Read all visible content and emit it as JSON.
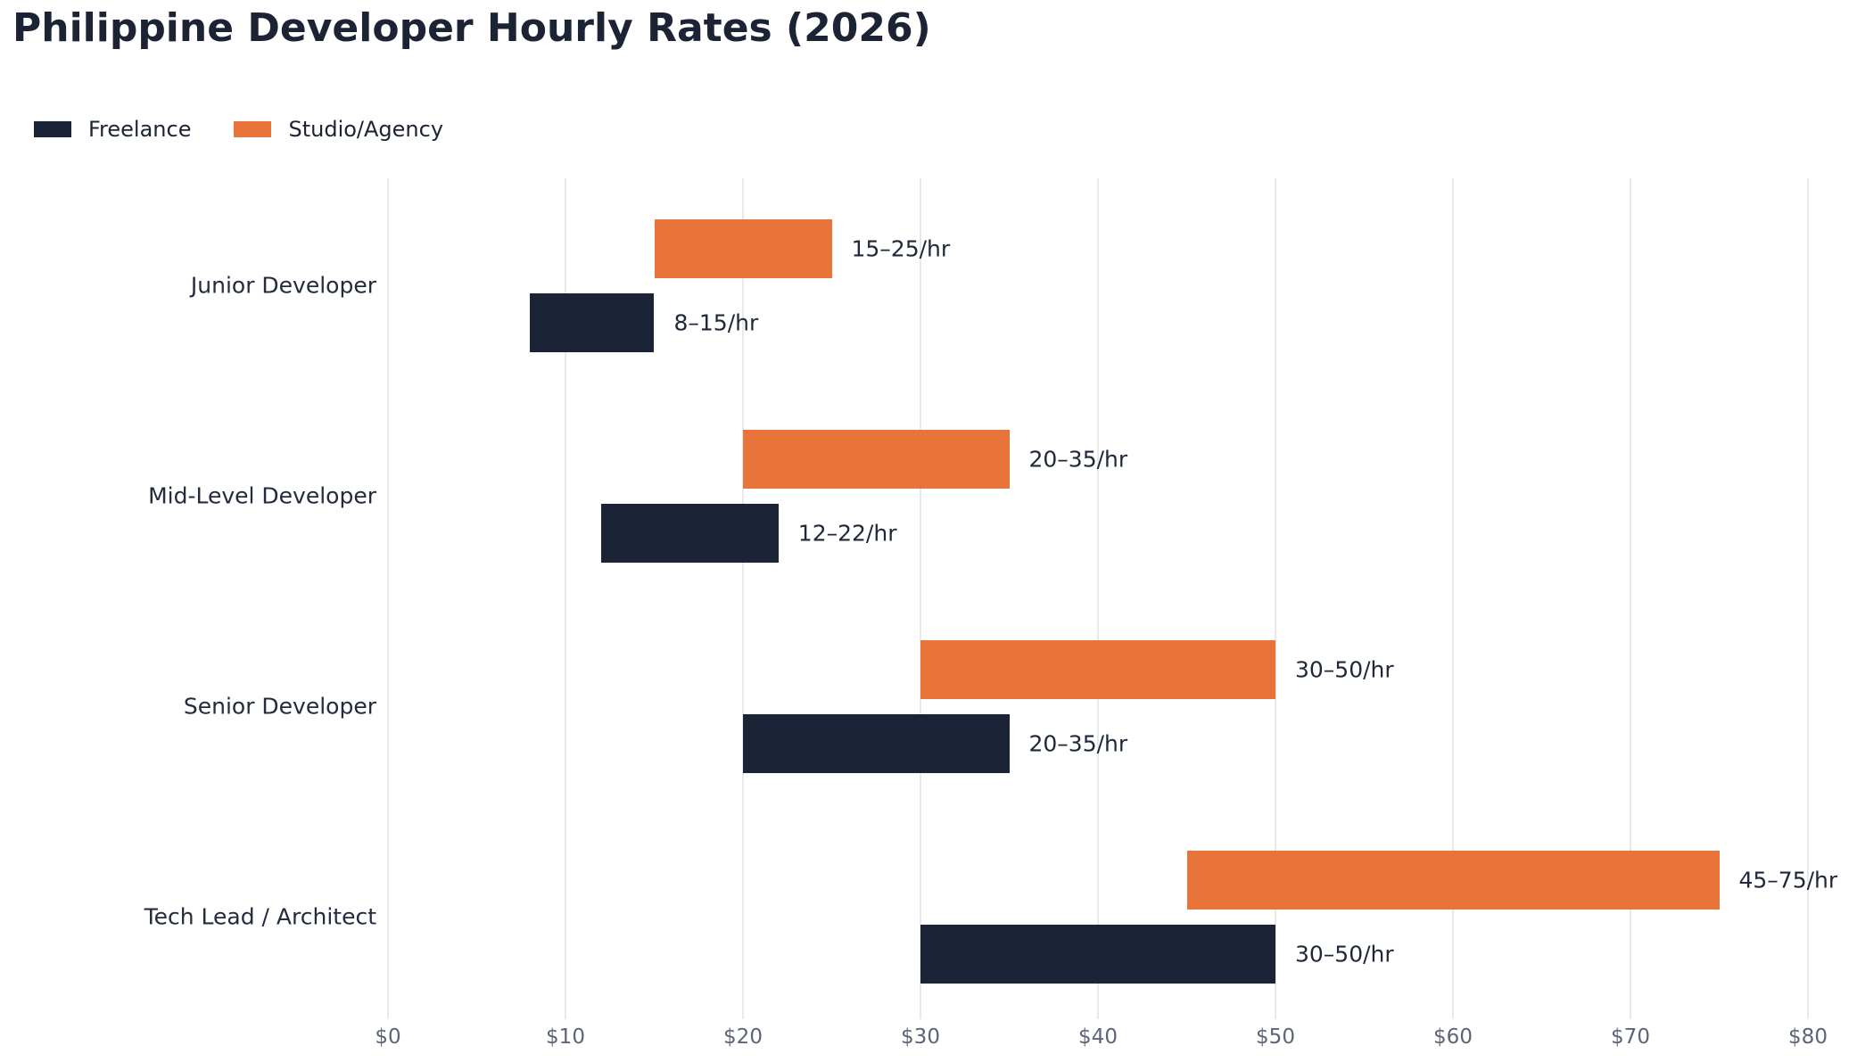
{
  "title": "Philippine Developer Hourly Rates (2026)",
  "colors": {
    "freelance": "#1b2336",
    "studio_agency": "#e8743a",
    "title_text": "#1b2335",
    "axis_tick_text": "#5d6478",
    "gridline": "#e9e9ec",
    "value_label_text": "#1f2839",
    "background": "#ffffff"
  },
  "legend": [
    {
      "label": "Freelance",
      "color": "#1b2336"
    },
    {
      "label": "Studio/Agency",
      "color": "#e8743a"
    }
  ],
  "chart_data": {
    "type": "bar",
    "orientation": "horizontal",
    "subtype": "range-bars",
    "title": "Philippine Developer Hourly Rates (2026)",
    "categories": [
      "Junior Developer",
      "Mid-Level Developer",
      "Senior Developer",
      "Tech Lead / Architect"
    ],
    "series": [
      {
        "name": "Freelance",
        "color": "#1b2336",
        "ranges": [
          [
            8,
            15
          ],
          [
            12,
            22
          ],
          [
            20,
            35
          ],
          [
            30,
            50
          ]
        ],
        "labels": [
          "8–15/hr",
          "12–22/hr",
          "20–35/hr",
          "30–50/hr"
        ]
      },
      {
        "name": "Studio/Agency",
        "color": "#e8743a",
        "ranges": [
          [
            15,
            25
          ],
          [
            20,
            35
          ],
          [
            30,
            50
          ],
          [
            45,
            75
          ]
        ],
        "labels": [
          "15–25/hr",
          "20–35/hr",
          "30–50/hr",
          "45–75/hr"
        ]
      }
    ],
    "x_ticks": [
      "$0",
      "$10",
      "$20",
      "$30",
      "$40",
      "$50",
      "$60",
      "$70",
      "$80"
    ],
    "x_tick_values": [
      0,
      10,
      20,
      30,
      40,
      50,
      60,
      70,
      80
    ],
    "xlim": [
      0,
      80
    ],
    "xlabel": "",
    "ylabel": "",
    "grid": "vertical",
    "legend_position": "top-left",
    "bar_order_top_to_bottom": [
      "Studio/Agency",
      "Freelance"
    ]
  }
}
